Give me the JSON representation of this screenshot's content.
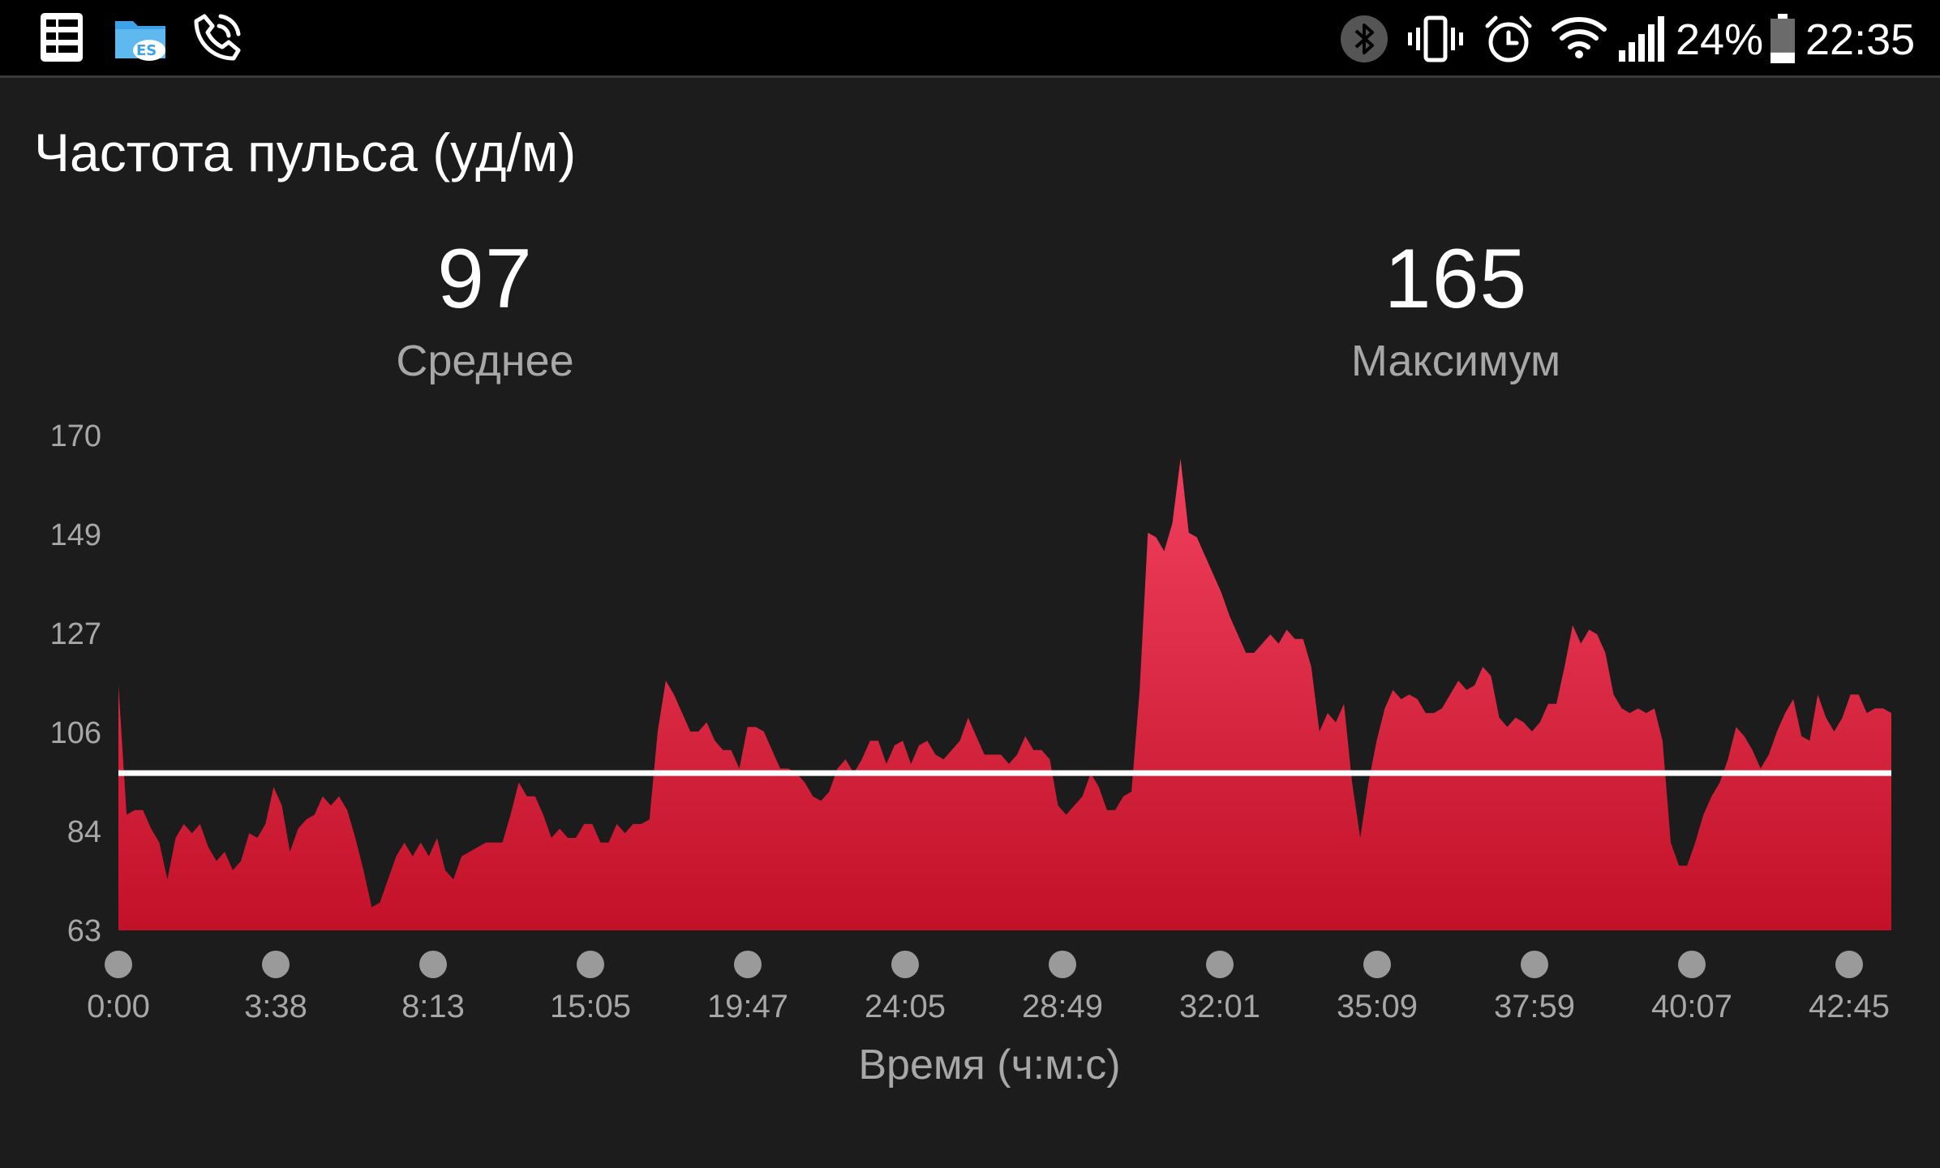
{
  "status_bar": {
    "left_icons": [
      "notes-app-icon",
      "es-file-explorer-icon",
      "wifi-calling-icon"
    ],
    "right_icons": [
      "bluetooth-icon",
      "vibrate-icon",
      "alarm-icon",
      "wifi-icon",
      "signal-icon",
      "battery-icon"
    ],
    "battery_percent": "24%",
    "battery_level": 0.24,
    "time": "22:35"
  },
  "page": {
    "title": "Частота пульса (уд/м)"
  },
  "stats": {
    "average_value": "97",
    "average_label": "Среднее",
    "max_value": "165",
    "max_label": "Максимум"
  },
  "chart_data": {
    "type": "area",
    "xlabel": "Время (ч:м:с)",
    "ylabel": "",
    "y_ticks": [
      "170",
      "149",
      "127",
      "106",
      "84",
      "63"
    ],
    "ylim": [
      63,
      170
    ],
    "x_ticks": [
      "0:00",
      "3:38",
      "8:13",
      "15:05",
      "19:47",
      "24:05",
      "28:49",
      "32:01",
      "35:09",
      "37:59",
      "40:07",
      "42:45"
    ],
    "average_line": 97,
    "fill_color_top": "#f0405e",
    "fill_color_bottom": "#c21128",
    "average_line_color": "#ffffff",
    "series": [
      {
        "values": [
          116,
          88,
          89,
          89,
          85,
          82,
          74,
          83,
          86,
          84,
          86,
          81,
          78,
          80,
          76,
          78,
          84,
          83,
          86,
          94,
          90,
          80,
          85,
          87,
          88,
          92,
          90,
          92,
          89,
          83,
          76,
          68,
          69,
          74,
          79,
          82,
          79,
          82,
          79,
          83,
          76,
          74,
          79,
          80,
          81,
          82,
          82,
          82,
          88,
          95,
          92,
          92,
          88,
          83,
          85,
          83,
          83,
          86,
          86,
          82,
          82,
          86,
          84,
          86,
          86,
          87,
          106,
          117,
          114,
          110,
          106,
          106,
          108,
          104,
          102,
          102,
          98,
          107,
          107,
          106,
          102,
          98,
          98,
          97,
          95,
          92,
          91,
          93,
          98,
          100,
          97,
          100,
          104,
          104,
          99,
          103,
          104,
          99,
          103,
          104,
          101,
          100,
          102,
          104,
          109,
          105,
          101,
          101,
          101,
          99,
          101,
          105,
          102,
          102,
          100,
          90,
          88,
          90,
          92,
          97,
          94,
          89,
          89,
          92,
          93,
          115,
          149,
          148,
          145,
          151,
          165,
          149,
          148,
          144,
          140,
          136,
          131,
          127,
          123,
          123,
          125,
          127,
          125,
          128,
          126,
          126,
          120,
          106,
          110,
          108,
          112,
          95,
          83,
          95,
          104,
          111,
          115,
          113,
          114,
          113,
          110,
          110,
          111,
          114,
          117,
          115,
          116,
          120,
          118,
          109,
          107,
          109,
          108,
          106,
          108,
          112,
          112,
          120,
          129,
          125,
          128,
          127,
          123,
          114,
          111,
          110,
          111,
          110,
          111,
          104,
          82,
          77,
          77,
          82,
          88,
          92,
          95,
          100,
          107,
          105,
          102,
          98,
          101,
          106,
          110,
          113,
          105,
          104,
          114,
          109,
          106,
          109,
          114,
          114,
          110,
          111,
          111,
          110
        ]
      }
    ]
  }
}
